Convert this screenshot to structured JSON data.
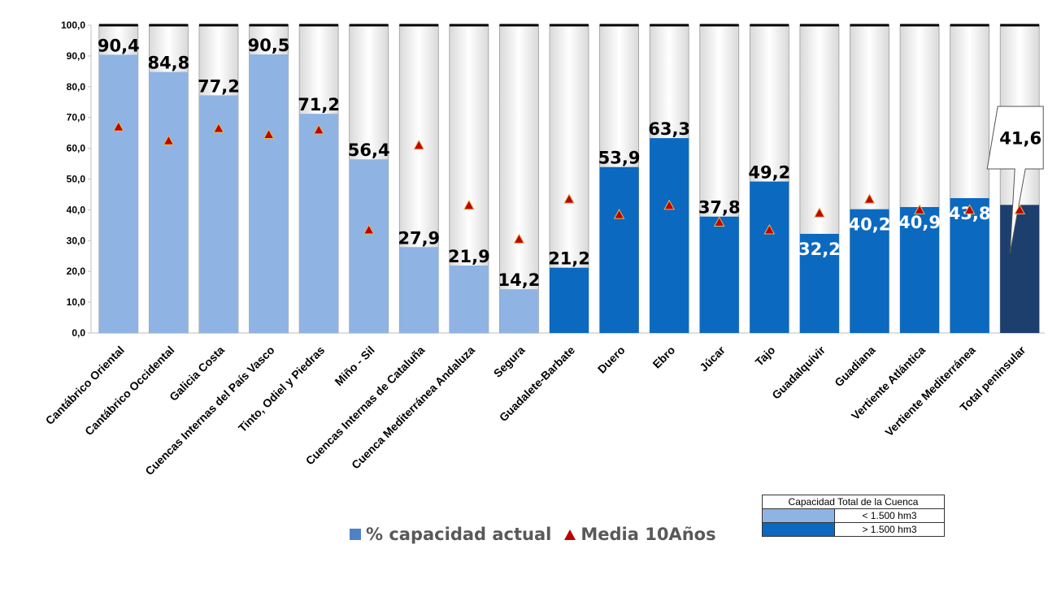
{
  "chart_data": {
    "type": "bar",
    "categories": [
      "Cantábrico Oriental",
      "Cantábrico Occidental",
      "Galicia Costa",
      "Cuencas Internas del País Vasco",
      "Tinto, Odiel y Piedras",
      "Miño - Sil",
      "Cuencas Internas de Cataluña",
      "Cuenca Mediterránea Andaluza",
      "Segura",
      "Guadalete-Barbate",
      "Duero",
      "Ebro",
      "Júcar",
      "Tajo",
      "Guadalquivir",
      "Guadiana",
      "Vertiente Atlántica",
      "Vertiente Mediterránea",
      "Total peninsular"
    ],
    "series": [
      {
        "name": "% capacidad actual",
        "values": [
          90.4,
          84.8,
          77.2,
          90.5,
          71.2,
          56.4,
          27.9,
          21.9,
          14.2,
          21.2,
          53.9,
          63.3,
          37.8,
          49.2,
          32.2,
          40.2,
          40.9,
          43.8,
          41.6
        ]
      },
      {
        "name": "Media 10Años",
        "values": [
          67.0,
          62.5,
          66.5,
          64.5,
          66.0,
          33.5,
          61.0,
          41.5,
          30.5,
          43.5,
          38.5,
          41.5,
          36.0,
          33.5,
          39.0,
          43.5,
          40.0,
          40.0,
          40.0
        ]
      }
    ],
    "value_labels": [
      "90,4",
      "84,8",
      "77,2",
      "90,5",
      "71,2",
      "56,4",
      "27,9",
      "21,9",
      "14,2",
      "21,2",
      "53,9",
      "63,3",
      "37,8",
      "49,2",
      "32,2",
      "40,2",
      "40,9",
      "43,8",
      "41,6"
    ],
    "size_class": [
      "small",
      "small",
      "small",
      "small",
      "small",
      "small",
      "small",
      "small",
      "small",
      "large",
      "large",
      "large",
      "large",
      "large",
      "large",
      "large",
      "large",
      "large",
      "total"
    ],
    "ylim": [
      0,
      100
    ],
    "yticks": [
      "0,0",
      "10,0",
      "20,0",
      "30,0",
      "40,0",
      "50,0",
      "60,0",
      "70,0",
      "80,0",
      "90,0",
      "100,0"
    ],
    "colors": {
      "small": "#8fb4e3",
      "large": "#0b69c0",
      "total": "#1c3f6e",
      "remainder": "#ececec",
      "marker": "#c00000",
      "marker_fill": "#c00000"
    },
    "legend": {
      "position": "bottom",
      "bar_label": "% capacidad actual",
      "marker_label": "Media 10Años"
    }
  },
  "legend_table": {
    "title": "Capacidad Total de la Cuenca",
    "rows": [
      {
        "color": "#8fb4e3",
        "label": "< 1.500 hm3"
      },
      {
        "color": "#0b69c0",
        "label": "> 1.500 hm3"
      }
    ]
  }
}
